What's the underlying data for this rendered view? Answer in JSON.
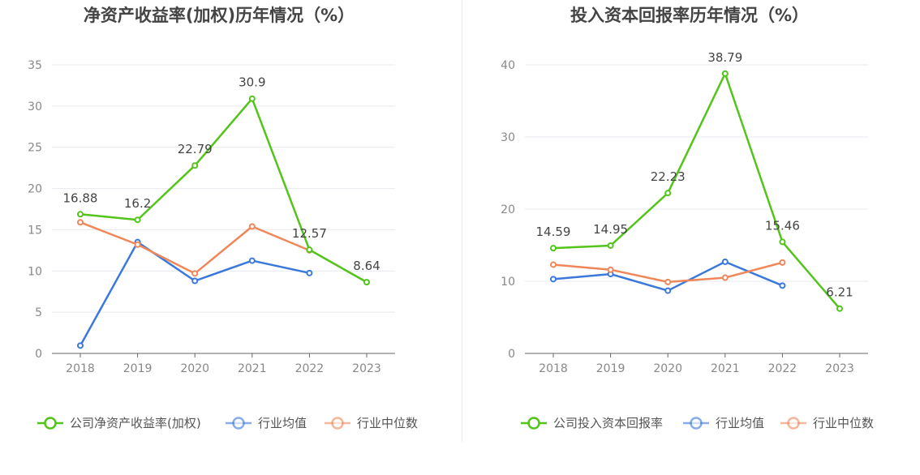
{
  "chart_data": [
    {
      "type": "line",
      "title": "净资产收益率(加权)历年情况（%）",
      "xlabel": "",
      "ylabel": "",
      "categories": [
        "2018",
        "2019",
        "2020",
        "2021",
        "2022",
        "2023"
      ],
      "ylim": [
        0,
        35
      ],
      "yticks": [
        0,
        5,
        10,
        15,
        20,
        25,
        30,
        35
      ],
      "grid": true,
      "legend_position": "bottom",
      "series": [
        {
          "name": "公司净资产收益率(加权)",
          "color": "#52c41a",
          "values": [
            16.88,
            16.2,
            22.79,
            30.9,
            12.57,
            8.64
          ],
          "labels": [
            "16.88",
            "16.2",
            "22.79",
            "30.9",
            "12.57",
            "8.64"
          ]
        },
        {
          "name": "行业均值",
          "color": "#3a78dc",
          "values": [
            0.95,
            13.5,
            8.8,
            11.25,
            9.75,
            null
          ]
        },
        {
          "name": "行业中位数",
          "color": "#f0875a",
          "values": [
            15.9,
            13.2,
            9.7,
            15.4,
            12.5,
            null
          ]
        }
      ]
    },
    {
      "type": "line",
      "title": "投入资本回报率历年情况（%）",
      "xlabel": "",
      "ylabel": "",
      "categories": [
        "2018",
        "2019",
        "2020",
        "2021",
        "2022",
        "2023"
      ],
      "ylim": [
        0,
        40
      ],
      "yticks": [
        0,
        10,
        20,
        30,
        40
      ],
      "grid": true,
      "legend_position": "bottom",
      "series": [
        {
          "name": "公司投入资本回报率",
          "color": "#52c41a",
          "values": [
            14.59,
            14.95,
            22.23,
            38.79,
            15.46,
            6.21
          ],
          "labels": [
            "14.59",
            "14.95",
            "22.23",
            "38.79",
            "15.46",
            "6.21"
          ]
        },
        {
          "name": "行业均值",
          "color": "#3a78dc",
          "values": [
            10.3,
            11.0,
            8.7,
            12.7,
            9.4,
            null
          ]
        },
        {
          "name": "行业中位数",
          "color": "#f0875a",
          "values": [
            12.3,
            11.6,
            9.9,
            10.5,
            12.6,
            null
          ]
        }
      ]
    }
  ]
}
